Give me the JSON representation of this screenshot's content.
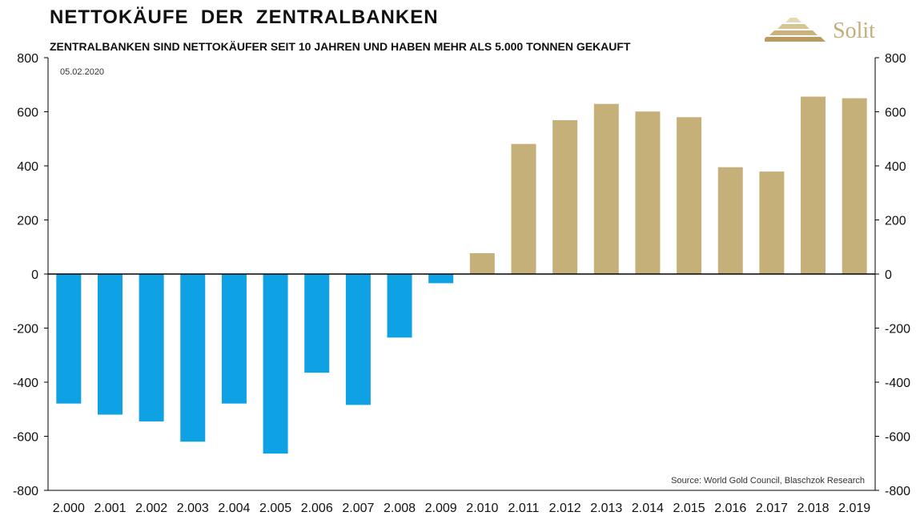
{
  "header": {
    "title": "NETTOKÄUFE  DER  ZENTRALBANKEN",
    "subtitle": "ZENTRALBANKEN SIND NETTOKÄUFER SEIT 10 JAHREN UND HABEN MEHR ALS 5.000 TONNEN GEKAUFT",
    "logo_text": "Solit"
  },
  "chart_data": {
    "type": "bar",
    "title": "NETTOKÄUFE  DER  ZENTRALBANKEN",
    "subtitle": "ZENTRALBANKEN SIND NETTOKÄUFER SEIT 10 JAHREN UND HABEN MEHR ALS 5.000 TONNEN GEKAUFT",
    "categories": [
      "2.000",
      "2.001",
      "2.002",
      "2.003",
      "2.004",
      "2.005",
      "2.006",
      "2.007",
      "2.008",
      "2.009",
      "2.010",
      "2.011",
      "2.012",
      "2.013",
      "2.014",
      "2.015",
      "2.016",
      "2.017",
      "2.018",
      "2.019"
    ],
    "values": [
      -479,
      -520,
      -545,
      -620,
      -479,
      -664,
      -365,
      -484,
      -235,
      -34,
      77,
      481,
      569,
      629,
      601,
      580,
      395,
      379,
      656,
      650
    ],
    "ylim": [
      -800,
      800
    ],
    "yticks": [
      -800,
      -600,
      -400,
      -200,
      0,
      200,
      400,
      600,
      800
    ],
    "ytick_labels": [
      "-800",
      "-600",
      "-400",
      "-200",
      "0",
      "200",
      "400",
      "600",
      "800"
    ],
    "xlabel": "",
    "ylabel": "",
    "grid": false,
    "legend": "none",
    "colors": {
      "negative": "#0ea1e3",
      "positive": "#c6b07a",
      "axis": "#000000"
    },
    "annotations": {
      "date": "05.02.2020",
      "source": "Source: World Gold Council, Blaschzok Research"
    }
  }
}
